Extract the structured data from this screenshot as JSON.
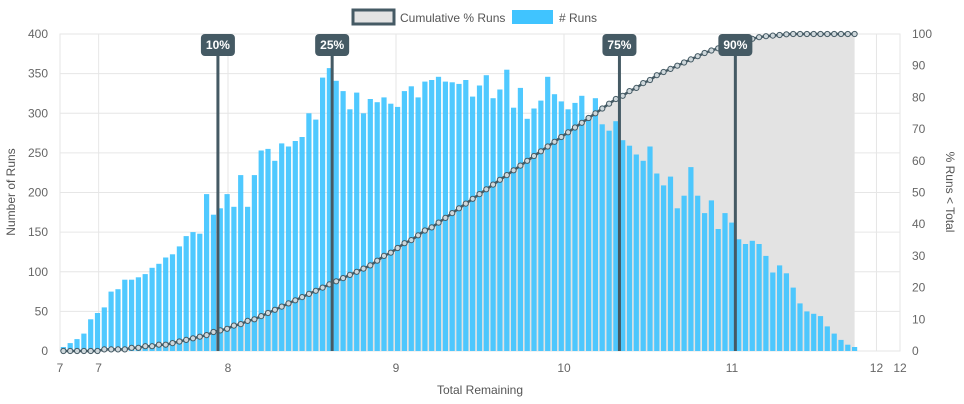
{
  "chart_data": {
    "type": "bar",
    "xlabel": "Total Remaining",
    "ylabel_left": "Number of Runs",
    "ylabel_right": "% Runs < Total",
    "xlim": [
      7,
      12
    ],
    "ylim_left": [
      0,
      400
    ],
    "ylim_right": [
      0,
      100
    ],
    "x_ticks": [
      "7",
      "7",
      "8",
      "9",
      "10",
      "11",
      "12",
      "12"
    ],
    "x_tick_values": [
      7.0,
      7.23,
      8.0,
      9.0,
      10.0,
      11.0,
      11.86,
      12.0
    ],
    "y_ticks_left": [
      "0",
      "50",
      "100",
      "150",
      "200",
      "250",
      "300",
      "350",
      "400"
    ],
    "y_ticks_right": [
      "0",
      "10",
      "20",
      "30",
      "40",
      "50",
      "60",
      "70",
      "80",
      "90",
      "100"
    ],
    "grid": true,
    "legend_position": "top-center",
    "series": [
      {
        "name": "Cumulative % Runs",
        "type": "area",
        "axis": "right",
        "color": "#455a64",
        "fill": "#e3e3e3"
      },
      {
        "name": "# Runs",
        "type": "bar",
        "axis": "left",
        "color": "#40c4ff"
      }
    ],
    "bin_start": 7.0,
    "bin_width": 0.0406,
    "bin_values": [
      5,
      10,
      15,
      22,
      40,
      48,
      55,
      75,
      78,
      90,
      90,
      93,
      97,
      105,
      110,
      118,
      122,
      132,
      145,
      150,
      148,
      198,
      172,
      180,
      198,
      182,
      222,
      182,
      222,
      253,
      255,
      240,
      262,
      258,
      265,
      270,
      300,
      292,
      345,
      357,
      341,
      328,
      305,
      326,
      300,
      318,
      314,
      320,
      312,
      308,
      328,
      334,
      320,
      340,
      342,
      346,
      340,
      339,
      337,
      342,
      321,
      335,
      348,
      319,
      330,
      355,
      307,
      332,
      293,
      306,
      316,
      346,
      324,
      315,
      305,
      313,
      322,
      296,
      319,
      286,
      278,
      290,
      266,
      259,
      248,
      240,
      258,
      224,
      209,
      220,
      180,
      196,
      232,
      196,
      174,
      190,
      154,
      174,
      162,
      141,
      135,
      139,
      135,
      120,
      99,
      108,
      98,
      80,
      60,
      50,
      47,
      44,
      31,
      22,
      14,
      8,
      5
    ],
    "cumulative_pct": [
      0.0,
      0.0,
      0.0,
      0.0,
      0.0,
      0.0,
      0.5,
      0.5,
      0.5,
      0.5,
      1.0,
      1.0,
      1.5,
      1.5,
      2.0,
      2.0,
      2.5,
      3.0,
      3.5,
      4.0,
      4.5,
      5.0,
      6.0,
      6.5,
      7.0,
      8.0,
      8.5,
      9.5,
      10.0,
      11.0,
      12.0,
      13.0,
      14.0,
      15.0,
      16.0,
      17.0,
      18.0,
      19.0,
      20.0,
      21.0,
      22.0,
      23.0,
      24.0,
      25.0,
      26.0,
      27.0,
      28.5,
      30.0,
      31.0,
      32.5,
      34.0,
      35.0,
      36.5,
      38.0,
      39.0,
      40.5,
      42.0,
      43.5,
      45.0,
      46.5,
      48.0,
      49.5,
      51.0,
      52.5,
      54.0,
      55.5,
      57.0,
      58.5,
      60.0,
      61.5,
      63.0,
      64.5,
      66.0,
      67.5,
      69.0,
      70.5,
      72.0,
      73.5,
      75.0,
      76.5,
      78.0,
      79.5,
      80.5,
      82.0,
      83.0,
      84.5,
      85.5,
      87.0,
      88.0,
      89.0,
      90.0,
      91.0,
      92.0,
      93.0,
      94.0,
      94.8,
      95.5,
      96.2,
      97.0,
      97.5,
      98.0,
      98.5,
      99.0,
      99.3,
      99.5,
      99.7,
      99.9,
      100.0,
      100.0,
      100.0,
      100.0,
      100.0,
      100.0,
      100.0,
      100.0,
      100.0,
      100.0
    ],
    "percentile_markers": [
      {
        "label": "10%",
        "x": 7.94
      },
      {
        "label": "25%",
        "x": 8.62
      },
      {
        "label": "75%",
        "x": 10.33
      },
      {
        "label": "90%",
        "x": 11.02
      }
    ]
  }
}
